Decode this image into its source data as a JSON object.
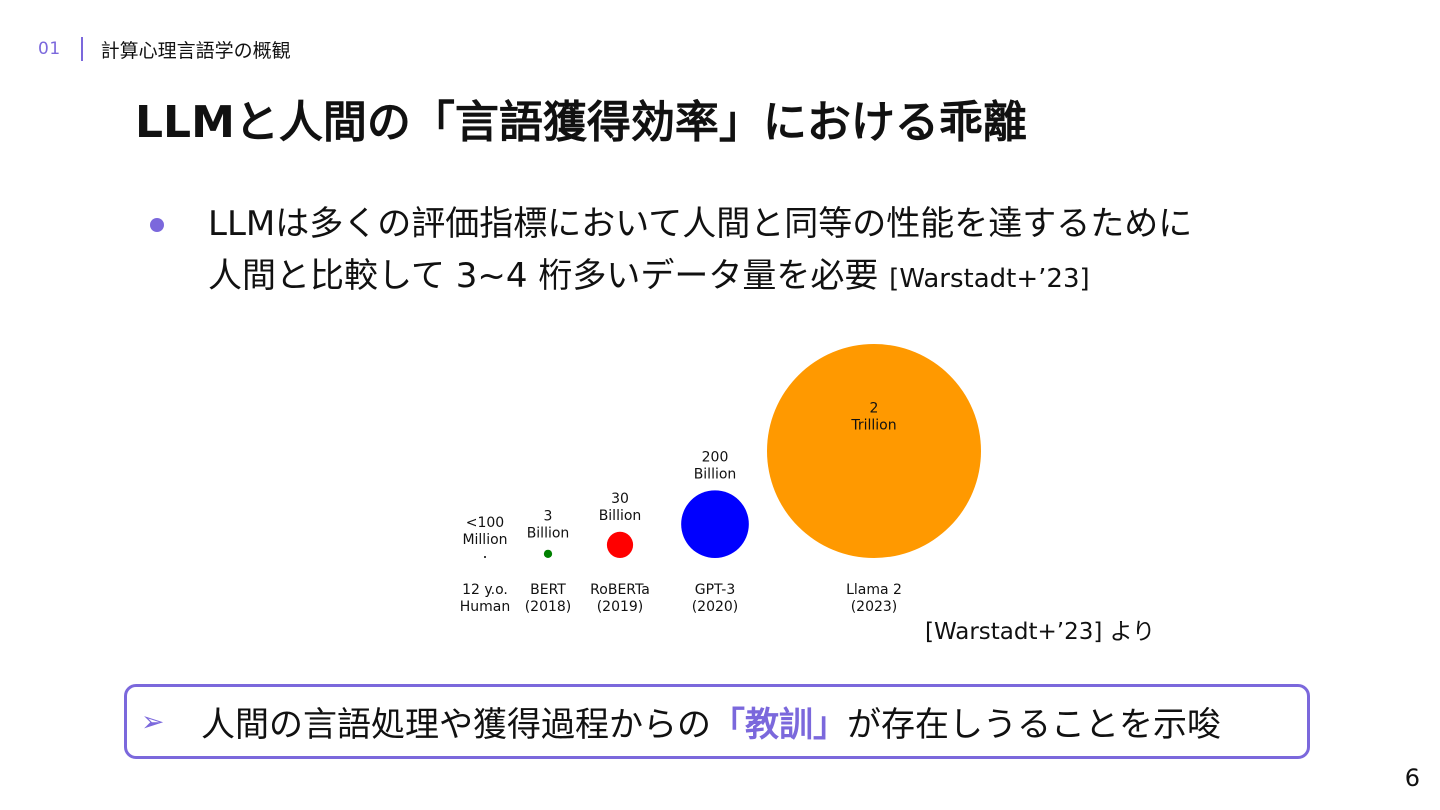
{
  "header": {
    "section_number": "01",
    "section_title": "計算心理言語学の概観"
  },
  "slide": {
    "title": "LLMと人間の「言語獲得効率」における乖離",
    "bullet": {
      "line1": "LLMは多くの評価指標において人間と同等の性能を達するために",
      "line2": "人間と比較して 3~4 桁多いデータ量を必要",
      "citation": "[Warstadt+’23]"
    },
    "chart_source": "[Warstadt+’23] より",
    "conclusion": {
      "prefix": "人間の言語処理や獲得過程からの",
      "highlight": "「教訓」",
      "suffix": "が存在しうることを示唆"
    },
    "page_number": "6"
  },
  "chart_data": {
    "type": "bubble",
    "categories": [
      {
        "name_line1": "12 y.o.",
        "name_line2": "Human",
        "amount_line1": "<100",
        "amount_line2": "Million",
        "words": 100000000,
        "color": "#000000"
      },
      {
        "name_line1": "BERT",
        "name_line2": "(2018)",
        "amount_line1": "3",
        "amount_line2": "Billion",
        "words": 3000000000,
        "color": "#008000"
      },
      {
        "name_line1": "RoBERTa",
        "name_line2": "(2019)",
        "amount_line1": "30",
        "amount_line2": "Billion",
        "words": 30000000000,
        "color": "#ff0000"
      },
      {
        "name_line1": "GPT-3",
        "name_line2": "(2020)",
        "amount_line1": "200",
        "amount_line2": "Billion",
        "words": 200000000000,
        "color": "#0000ff"
      },
      {
        "name_line1": "Llama 2",
        "name_line2": "(2023)",
        "amount_line1": "2",
        "amount_line2": "Trillion",
        "words": 2000000000000,
        "color": "#ff9900"
      }
    ]
  }
}
